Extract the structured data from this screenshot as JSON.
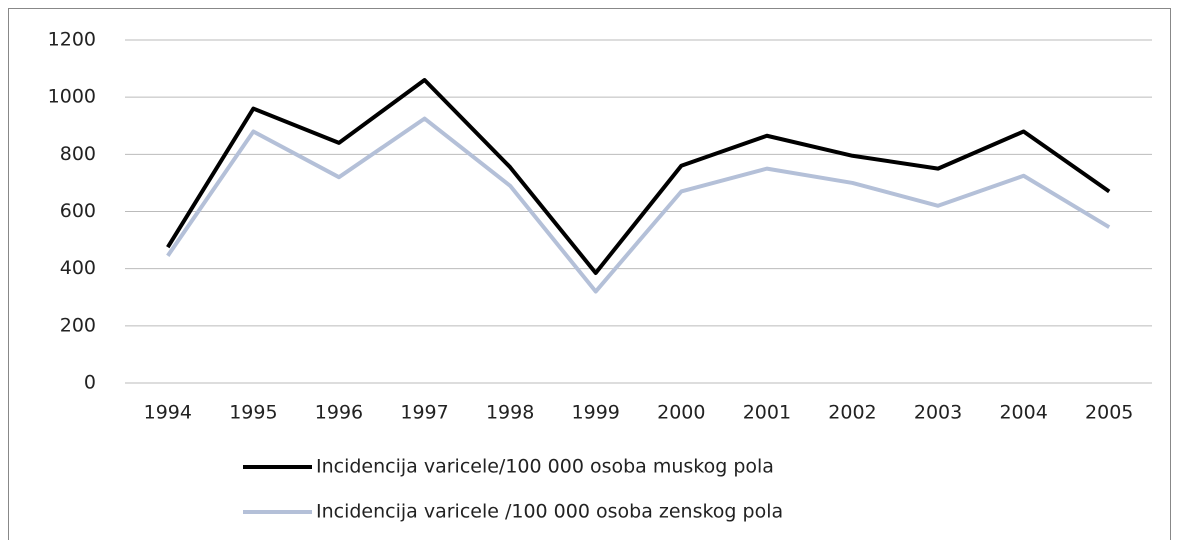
{
  "chart_data": {
    "type": "line",
    "categories": [
      "1994",
      "1995",
      "1996",
      "1997",
      "1998",
      "1999",
      "2000",
      "2001",
      "2002",
      "2003",
      "2004",
      "2005"
    ],
    "series": [
      {
        "name": "Incidencija varicele/100 000 osoba muskog pola",
        "color": "#000000",
        "values": [
          475,
          960,
          840,
          1060,
          755,
          385,
          760,
          865,
          795,
          750,
          880,
          670
        ]
      },
      {
        "name": "Incidencija varicele /100 000 osoba zenskog pola",
        "color": "#b4c0d8",
        "values": [
          445,
          880,
          720,
          925,
          690,
          320,
          670,
          750,
          700,
          620,
          725,
          545
        ]
      }
    ],
    "ylim": [
      0,
      1200
    ],
    "yticks": [
      0,
      200,
      400,
      600,
      800,
      1000,
      1200
    ],
    "grid": true
  }
}
